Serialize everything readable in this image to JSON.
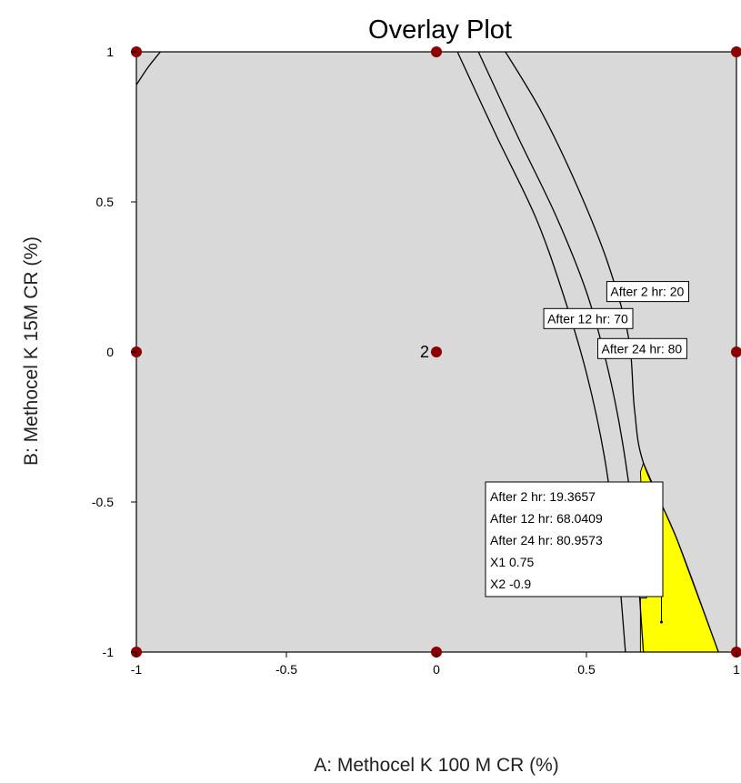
{
  "chart_data": {
    "type": "contour",
    "title": "Overlay Plot",
    "xlabel": "A: Methocel K 100 M CR (%)",
    "ylabel": "B: Methocel K 15M CR (%)",
    "xlim": [
      -1,
      1
    ],
    "ylim": [
      -1,
      1
    ],
    "xticks": [
      "-1",
      "-0.5",
      "0",
      "0.5",
      "1"
    ],
    "yticks": [
      "-1",
      "-0.5",
      "0",
      "0.5",
      "1"
    ],
    "colors": {
      "background": "#d9d9d9",
      "design_region": "#ffff00",
      "design_point": "#8b0000",
      "contour": "#000000"
    },
    "contours": [
      {
        "label": "After 2 hr: 20",
        "points": [
          [
            0.07,
            1
          ],
          [
            0.2,
            0.72
          ],
          [
            0.33,
            0.45
          ],
          [
            0.42,
            0.2
          ],
          [
            0.5,
            -0.07
          ],
          [
            0.56,
            -0.35
          ],
          [
            0.6,
            -0.65
          ],
          [
            0.63,
            -1
          ]
        ]
      },
      {
        "label": "After 12 hr: 70",
        "points": [
          [
            0.14,
            1
          ],
          [
            0.27,
            0.72
          ],
          [
            0.4,
            0.45
          ],
          [
            0.5,
            0.2
          ],
          [
            0.57,
            -0.05
          ],
          [
            0.62,
            -0.3
          ],
          [
            0.66,
            -0.6
          ],
          [
            0.69,
            -1
          ]
        ]
      },
      {
        "label": "After 24 hr: 80",
        "points": [
          [
            0.23,
            1
          ],
          [
            0.35,
            0.8
          ],
          [
            0.47,
            0.55
          ],
          [
            0.57,
            0.3
          ],
          [
            0.64,
            0.05
          ],
          [
            0.66,
            -0.19
          ],
          [
            0.69,
            -0.37
          ],
          [
            0.8,
            -0.62
          ],
          [
            0.94,
            -1
          ]
        ]
      }
    ],
    "corner_contour": {
      "points": [
        [
          -0.92,
          1
        ],
        [
          -0.96,
          0.95
        ],
        [
          -1,
          0.89
        ]
      ]
    },
    "design_region": {
      "points": [
        [
          0.68,
          -0.4
        ],
        [
          0.69,
          -0.37
        ],
        [
          0.8,
          -0.62
        ],
        [
          0.94,
          -1
        ],
        [
          0.68,
          -1
        ],
        [
          0.68,
          -0.82
        ],
        [
          0.7,
          -0.82
        ]
      ]
    },
    "design_points": [
      [
        -1,
        1
      ],
      [
        0,
        1
      ],
      [
        1,
        1
      ],
      [
        -1,
        0
      ],
      [
        0,
        0
      ],
      [
        1,
        0
      ],
      [
        -1,
        -1
      ],
      [
        0,
        -1
      ],
      [
        1,
        -1
      ]
    ],
    "point_annotation": {
      "x": 0,
      "y": 0,
      "text": "2"
    },
    "contour_label_positions": [
      {
        "label": "After 2 hr: 20",
        "x": 0.58,
        "y": 0.18
      },
      {
        "label": "After 12 hr: 70",
        "x": 0.37,
        "y": 0.09
      },
      {
        "label": "After 24 hr: 80",
        "x": 0.55,
        "y": -0.01
      }
    ],
    "flag": {
      "x": 0.75,
      "y": -0.9,
      "lines": [
        "After 2 hr:   19.3657",
        "After 12 hr:   68.0409",
        "After 24 hr:   80.9573",
        "X1  0.75",
        "X2  -0.9"
      ]
    }
  }
}
